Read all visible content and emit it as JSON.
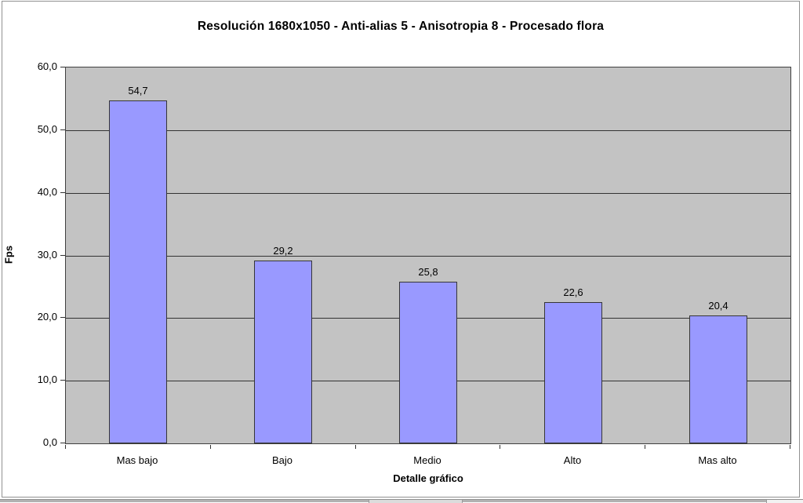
{
  "chart_data": {
    "type": "bar",
    "title": "Resolución 1680x1050 - Anti-alias 5 - Anisotropia 8 - Procesado flora",
    "categories": [
      "Mas bajo",
      "Bajo",
      "Medio",
      "Alto",
      "Mas alto"
    ],
    "values": [
      54.7,
      29.2,
      25.8,
      22.6,
      20.4
    ],
    "value_labels": [
      "54,7",
      "29,2",
      "25,8",
      "22,6",
      "20,4"
    ],
    "xlabel": "Detalle gráfico",
    "ylabel": "Fps",
    "ylim": [
      0,
      60
    ],
    "ytick_step": 10,
    "ytick_labels": [
      "0,0",
      "10,0",
      "20,0",
      "30,0",
      "40,0",
      "50,0",
      "60,0"
    ],
    "grid": true,
    "legend": false,
    "colors": {
      "bar_fill": "#9999ff",
      "bar_border": "#363636",
      "plot_bg": "#c3c3c3",
      "gridline": "#333333",
      "chart_border": "#919191",
      "text": "#000000"
    }
  },
  "window": {
    "bottom_scrollbar": "horizontal-scrollbar"
  }
}
